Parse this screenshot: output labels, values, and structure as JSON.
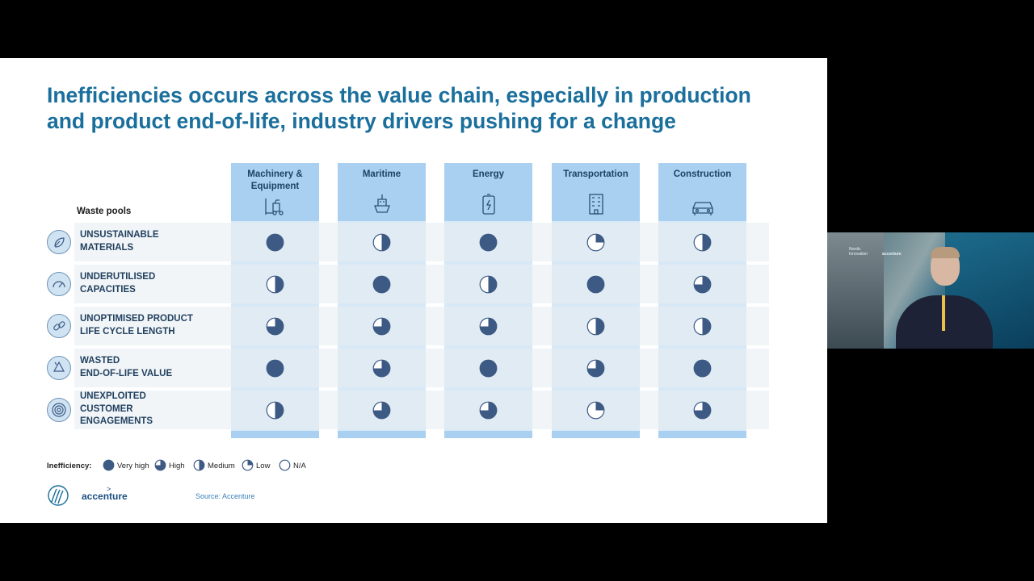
{
  "slide": {
    "title": "Inefficiencies occurs across the value chain, especially in production and product end-of-life, industry drivers pushing for a change",
    "rows_header": "Waste pools",
    "columns": [
      {
        "label": "Machinery & Equipment",
        "icon": "forklift-icon"
      },
      {
        "label": "Maritime",
        "icon": "ship-icon"
      },
      {
        "label": "Energy",
        "icon": "battery-icon"
      },
      {
        "label": "Transportation",
        "icon": "building-icon"
      },
      {
        "label": "Construction",
        "icon": "car-icon"
      }
    ],
    "rows": [
      {
        "label": "UNSUSTAINABLE\nMATERIALS",
        "icon": "leaf-icon",
        "levels": [
          "Very high",
          "Medium",
          "Very high",
          "Low",
          "Medium"
        ]
      },
      {
        "label": "UNDERUTILISED\nCAPACITIES",
        "icon": "gauge-icon",
        "levels": [
          "Medium",
          "Very high",
          "Medium",
          "Very high",
          "High"
        ]
      },
      {
        "label": "UNOPTIMISED PRODUCT\nLIFE CYCLE LENGTH",
        "icon": "link-icon",
        "levels": [
          "High",
          "High",
          "High",
          "Medium",
          "Medium"
        ]
      },
      {
        "label": "WASTED\nEND-OF-LIFE VALUE",
        "icon": "recycle-icon",
        "levels": [
          "Very high",
          "High",
          "Very high",
          "High",
          "Very high"
        ]
      },
      {
        "label": "UNEXPLOITED\nCUSTOMER\nENGAGEMENTS",
        "icon": "target-icon",
        "levels": [
          "Medium",
          "High",
          "High",
          "Low",
          "High"
        ]
      }
    ],
    "legend": {
      "title": "Inefficiency:",
      "items": [
        {
          "label": "Very high",
          "fraction": 1
        },
        {
          "label": "High",
          "fraction": 0.75
        },
        {
          "label": "Medium",
          "fraction": 0.5
        },
        {
          "label": "Low",
          "fraction": 0.25
        },
        {
          "label": "N/A",
          "fraction": 0
        }
      ]
    },
    "source": "Source: Accenture",
    "brand": "accenture"
  },
  "colors": {
    "title": "#1a6f9c",
    "header_band": "#a9d0f0",
    "column_band": "#d7e8f6",
    "dot": "#3d5a85"
  },
  "camera": {
    "logo_left": "Nordic Innovation",
    "logo_right": "accenture"
  }
}
